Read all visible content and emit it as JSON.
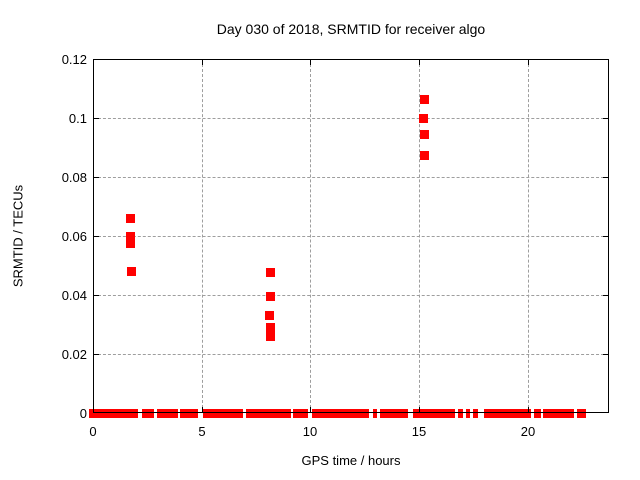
{
  "colors": {
    "marker": "#ff0000",
    "grid": "#9e9e9e",
    "frame": "#000000",
    "text": "#000000",
    "background": "#ffffff"
  },
  "chart_data": {
    "type": "scatter",
    "title": "Day 030 of 2018, SRMTID for receiver algo",
    "xlabel": "GPS time / hours",
    "ylabel": "SRMTID / TECUs",
    "xlim": [
      0,
      23.75
    ],
    "ylim": [
      0,
      0.12
    ],
    "xticks": [
      0,
      5,
      10,
      15,
      20
    ],
    "xtick_labels": [
      "0",
      "5",
      "10",
      "15",
      "20"
    ],
    "yticks": [
      0,
      0.02,
      0.04,
      0.06,
      0.08,
      0.1,
      0.12
    ],
    "ytick_labels": [
      "0",
      "0.02",
      "0.04",
      "0.06",
      "0.08",
      "0.1",
      "0.12"
    ],
    "grid": true,
    "legend": "none",
    "marker": "plus",
    "series": [
      {
        "name": "SRMTID",
        "points": [
          [
            0.0,
            0.0
          ],
          [
            1.7,
            0.066
          ],
          [
            1.69,
            0.06
          ],
          [
            1.7,
            0.0575
          ],
          [
            1.73,
            0.0483
          ],
          [
            8.15,
            0.0477
          ],
          [
            8.16,
            0.0398
          ],
          [
            8.12,
            0.0333
          ],
          [
            8.16,
            0.0293
          ],
          [
            8.16,
            0.0262
          ],
          [
            15.25,
            0.1065
          ],
          [
            15.21,
            0.1
          ],
          [
            15.24,
            0.0945
          ],
          [
            15.25,
            0.0873
          ]
        ],
        "zero_band_segments": [
          [
            0.18,
            2.07
          ],
          [
            2.26,
            2.81
          ],
          [
            2.95,
            3.92
          ],
          [
            4.01,
            4.84
          ],
          [
            5.07,
            6.91
          ],
          [
            7.05,
            9.12
          ],
          [
            9.22,
            9.9
          ],
          [
            10.09,
            12.7
          ],
          [
            12.88,
            13.06
          ],
          [
            13.2,
            14.52
          ],
          [
            14.72,
            16.68
          ],
          [
            16.8,
            17.05
          ],
          [
            17.18,
            17.37
          ],
          [
            17.51,
            17.7
          ],
          [
            17.98,
            20.14
          ],
          [
            20.28,
            20.6
          ],
          [
            20.7,
            22.12
          ],
          [
            22.26,
            22.67
          ]
        ]
      }
    ]
  }
}
